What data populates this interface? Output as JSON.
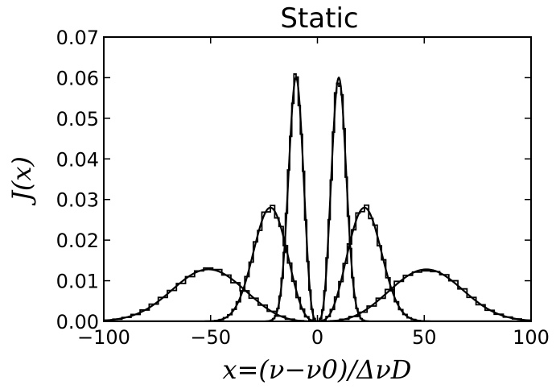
{
  "chart_data": {
    "type": "line",
    "title": "Static",
    "xlabel": "x=(ν−ν0)/ΔνD",
    "ylabel": "J(x)",
    "xlim": [
      -100,
      100
    ],
    "ylim": [
      0,
      0.07
    ],
    "x_ticks": [
      -100,
      -50,
      0,
      50,
      100
    ],
    "x_tick_labels": [
      "−100",
      "−50",
      "0",
      "50",
      "100"
    ],
    "y_ticks": [
      0,
      0.01,
      0.02,
      0.03,
      0.04,
      0.05,
      0.06,
      0.07
    ],
    "y_tick_labels": [
      "0.00",
      "0.01",
      "0.02",
      "0.03",
      "0.04",
      "0.05",
      "0.06",
      "0.07"
    ],
    "grid": false,
    "series": [
      {
        "style": "curve",
        "peak_x": 10,
        "peak_y": 0.06,
        "width": 3.5
      },
      {
        "style": "curve",
        "peak_x": 22,
        "peak_y": 0.028,
        "width": 8
      },
      {
        "style": "curve",
        "peak_x": 51,
        "peak_y": 0.0128,
        "width": 17
      },
      {
        "style": "histogram",
        "peak_x": 10,
        "peak_y": 0.06,
        "width": 3.5
      },
      {
        "style": "histogram",
        "peak_x": 22,
        "peak_y": 0.028,
        "width": 8
      },
      {
        "style": "histogram",
        "peak_x": 51,
        "peak_y": 0.0128,
        "width": 17
      }
    ]
  }
}
